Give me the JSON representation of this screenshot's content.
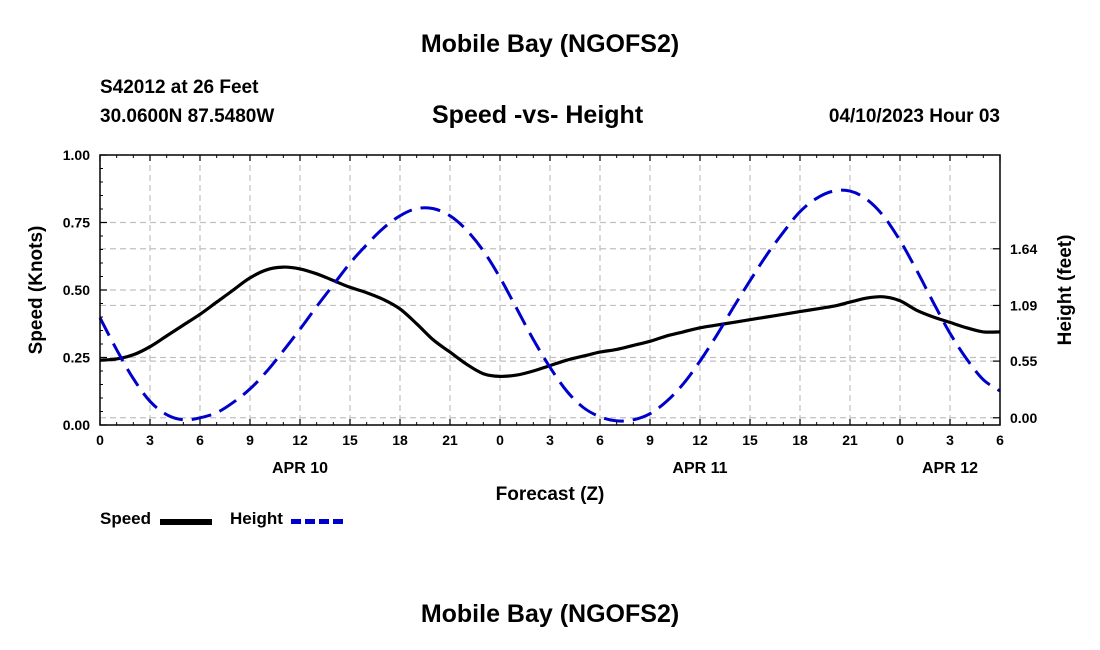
{
  "page": {
    "title": "Mobile Bay (NGOFS2)",
    "footer_title": "Mobile Bay (NGOFS2)",
    "station_line": "S42012 at 26 Feet",
    "coords_line": "30.0600N  87.5480W",
    "timestamp": "04/10/2023 Hour 03"
  },
  "chart_data": {
    "type": "line",
    "title": "Speed -vs- Height",
    "xlabel": "Forecast (Z)",
    "ylabel": "Speed (Knots)",
    "y2label": "Height (feet)",
    "x_range_hours": [
      0,
      54
    ],
    "x_tick_labels": [
      "0",
      "3",
      "6",
      "9",
      "12",
      "15",
      "18",
      "21",
      "0",
      "3",
      "6",
      "9",
      "12",
      "15",
      "18",
      "21",
      "0",
      "3",
      "6"
    ],
    "x_date_labels": [
      {
        "label": "APR 10",
        "hour": 12
      },
      {
        "label": "APR 11",
        "hour": 36
      },
      {
        "label": "APR 12",
        "hour": 51
      }
    ],
    "ylim": [
      0,
      1.0
    ],
    "y_ticks": [
      "0.00",
      "0.25",
      "0.50",
      "0.75",
      "1.00"
    ],
    "y2lim": [
      -0.07,
      2.55
    ],
    "y2_ticks": [
      "0.00",
      "0.55",
      "1.09",
      "1.64"
    ],
    "grid": true,
    "legend_position": "bottom-left",
    "colors": {
      "speed": "#000000",
      "height": "#0000cc",
      "grid": "#c0c0c0"
    },
    "series": [
      {
        "name": "Speed",
        "axis": "left",
        "style": "solid",
        "x": [
          0,
          1,
          2,
          3,
          4,
          5,
          6,
          7,
          8,
          9,
          10,
          11,
          12,
          13,
          14,
          15,
          16,
          17,
          18,
          19,
          20,
          21,
          22,
          23,
          24,
          25,
          26,
          27,
          28,
          29,
          30,
          31,
          32,
          33,
          34,
          35,
          36,
          37,
          38,
          39,
          40,
          41,
          42,
          43,
          44,
          45,
          46,
          47,
          48,
          49,
          50,
          51,
          52,
          53,
          54
        ],
        "values": [
          0.24,
          0.245,
          0.26,
          0.29,
          0.33,
          0.37,
          0.41,
          0.455,
          0.5,
          0.545,
          0.575,
          0.585,
          0.578,
          0.56,
          0.535,
          0.51,
          0.49,
          0.465,
          0.43,
          0.375,
          0.315,
          0.27,
          0.225,
          0.19,
          0.18,
          0.185,
          0.2,
          0.22,
          0.24,
          0.255,
          0.27,
          0.28,
          0.295,
          0.31,
          0.33,
          0.345,
          0.36,
          0.37,
          0.38,
          0.39,
          0.4,
          0.41,
          0.42,
          0.43,
          0.44,
          0.455,
          0.47,
          0.475,
          0.46,
          0.425,
          0.4,
          0.38,
          0.36,
          0.345,
          0.345
        ]
      },
      {
        "name": "Height",
        "axis": "right",
        "style": "dashed",
        "x": [
          0,
          1,
          2,
          3,
          4,
          5,
          6,
          7,
          8,
          9,
          10,
          11,
          12,
          13,
          14,
          15,
          16,
          17,
          18,
          19,
          20,
          21,
          22,
          23,
          24,
          25,
          26,
          27,
          28,
          29,
          30,
          31,
          32,
          33,
          34,
          35,
          36,
          37,
          38,
          39,
          40,
          41,
          42,
          43,
          44,
          45,
          46,
          47,
          48,
          49,
          50,
          51,
          52,
          53,
          54
        ],
        "values": [
          0.97,
          0.66,
          0.38,
          0.16,
          0.03,
          -0.02,
          0.0,
          0.05,
          0.15,
          0.28,
          0.45,
          0.65,
          0.86,
          1.08,
          1.29,
          1.5,
          1.68,
          1.84,
          1.96,
          2.03,
          2.03,
          1.96,
          1.82,
          1.62,
          1.36,
          1.06,
          0.76,
          0.49,
          0.26,
          0.1,
          0.01,
          -0.03,
          -0.02,
          0.04,
          0.16,
          0.33,
          0.55,
          0.8,
          1.07,
          1.33,
          1.58,
          1.8,
          2.0,
          2.13,
          2.2,
          2.2,
          2.12,
          1.96,
          1.72,
          1.43,
          1.12,
          0.82,
          0.57,
          0.37,
          0.26
        ]
      }
    ]
  }
}
